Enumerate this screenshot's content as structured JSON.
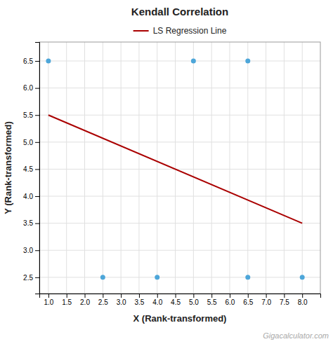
{
  "chart_data": {
    "type": "scatter",
    "title": "Kendall Correlation",
    "xlabel": "X (Rank-transformed)",
    "ylabel": "Y (Rank-transformed)",
    "annotations": [
      "Gigacalculator.com"
    ],
    "series": [
      {
        "type": "scatter",
        "color": "#4da6d9",
        "x": [
          1.0,
          2.5,
          4.0,
          5.0,
          6.5,
          6.5,
          8.0
        ],
        "values": [
          6.5,
          2.5,
          2.5,
          6.5,
          6.5,
          2.5,
          2.5
        ]
      },
      {
        "name": "LS Regression Line",
        "type": "line",
        "color": "#aa0000",
        "x": [
          1.0,
          8.0
        ],
        "values": [
          5.5,
          3.5
        ]
      }
    ],
    "xlim": [
      0.75,
      8.5
    ],
    "ylim": [
      2.2,
      6.85
    ],
    "xticks": [
      {
        "value": 1.0,
        "label": "1.0"
      },
      1.5,
      {
        "value": 2.0,
        "label": "2.0"
      },
      2.5,
      {
        "value": 3.0,
        "label": "3.0"
      },
      3.5,
      {
        "value": 4.0,
        "label": "4.0"
      },
      4.5,
      {
        "value": 5.0,
        "label": "5.0"
      },
      5.5,
      {
        "value": 6.0,
        "label": "6.0"
      },
      6.5,
      {
        "value": 7.0,
        "label": "7.0"
      },
      7.5,
      {
        "value": 8.0,
        "label": "8.0"
      }
    ],
    "yticks": [
      2.5,
      {
        "value": 3.0,
        "label": "3.0"
      },
      3.5,
      {
        "value": 4.0,
        "label": "4.0"
      },
      4.5,
      {
        "value": 5.0,
        "label": "5.0"
      },
      5.5,
      {
        "value": 6.0,
        "label": "6.0"
      },
      6.5
    ],
    "grid": true,
    "legend": "top"
  }
}
